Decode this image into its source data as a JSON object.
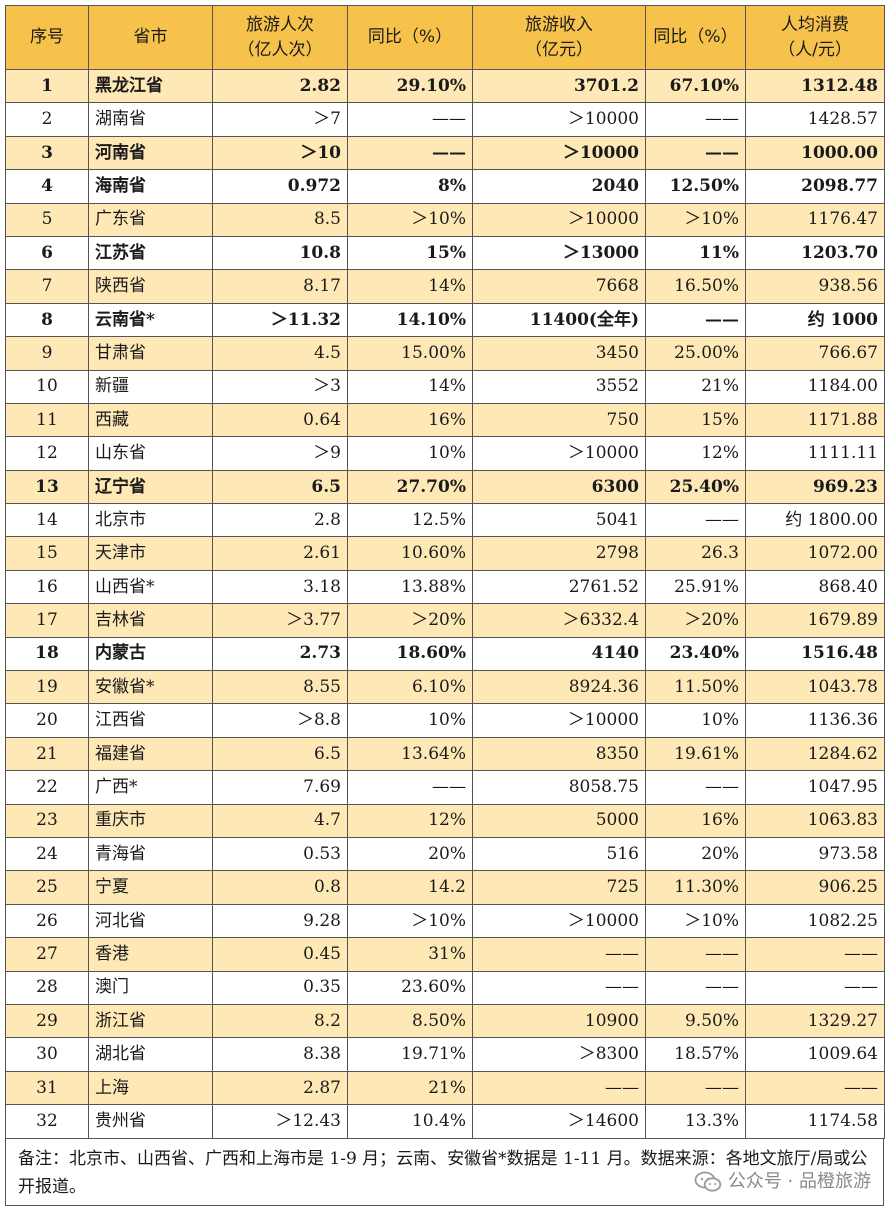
{
  "headers": [
    "序号",
    "省市",
    "旅游人次\n（亿人次）",
    "同比（%）",
    "旅游收入\n（亿元）",
    "同比（%）",
    "人均消费\n（人/元）"
  ],
  "rows": [
    [
      "1",
      "黑龙江省",
      "2.82",
      "29.10%",
      "3701.2",
      "67.10%",
      "1312.48"
    ],
    [
      "2",
      "湖南省",
      "＞7",
      "——",
      "＞10000",
      "——",
      "1428.57"
    ],
    [
      "3",
      "河南省",
      "＞10",
      "——",
      "＞10000",
      "——",
      "1000.00"
    ],
    [
      "4",
      "海南省",
      "0.972",
      "8%",
      "2040",
      "12.50%",
      "2098.77"
    ],
    [
      "5",
      "广东省",
      "8.5",
      "＞10%",
      "＞10000",
      "＞10%",
      "1176.47"
    ],
    [
      "6",
      "江苏省",
      "10.8",
      "15%",
      "＞13000",
      "11%",
      "1203.70"
    ],
    [
      "7",
      "陕西省",
      "8.17",
      "14%",
      "7668",
      "16.50%",
      "938.56"
    ],
    [
      "8",
      "云南省*",
      "＞11.32",
      "14.10%",
      "11400(全年)",
      "——",
      "约 1000"
    ],
    [
      "9",
      "甘肃省",
      "4.5",
      "15.00%",
      "3450",
      "25.00%",
      "766.67"
    ],
    [
      "10",
      "新疆",
      "＞3",
      "14%",
      "3552",
      "21%",
      "1184.00"
    ],
    [
      "11",
      "西藏",
      "0.64",
      "16%",
      "750",
      "15%",
      "1171.88"
    ],
    [
      "12",
      "山东省",
      "＞9",
      "10%",
      "＞10000",
      "12%",
      "1111.11"
    ],
    [
      "13",
      "辽宁省",
      "6.5",
      "27.70%",
      "6300",
      "25.40%",
      "969.23"
    ],
    [
      "14",
      "北京市",
      "2.8",
      "12.5%",
      "5041",
      "——",
      "约 1800.00"
    ],
    [
      "15",
      "天津市",
      "2.61",
      "10.60%",
      "2798",
      "26.3",
      "1072.00"
    ],
    [
      "16",
      "山西省*",
      "3.18",
      "13.88%",
      "2761.52",
      "25.91%",
      "868.40"
    ],
    [
      "17",
      "吉林省",
      "＞3.77",
      "＞20%",
      "＞6332.4",
      "＞20%",
      "1679.89"
    ],
    [
      "18",
      "内蒙古",
      "2.73",
      "18.60%",
      "4140",
      "23.40%",
      "1516.48"
    ],
    [
      "19",
      "安徽省*",
      "8.55",
      "6.10%",
      "8924.36",
      "11.50%",
      "1043.78"
    ],
    [
      "20",
      "江西省",
      "＞8.8",
      "10%",
      "＞10000",
      "10%",
      "1136.36"
    ],
    [
      "21",
      "福建省",
      "6.5",
      "13.64%",
      "8350",
      "19.61%",
      "1284.62"
    ],
    [
      "22",
      "广西*",
      "7.69",
      "——",
      "8058.75",
      "——",
      "1047.95"
    ],
    [
      "23",
      "重庆市",
      "4.7",
      "12%",
      "5000",
      "16%",
      "1063.83"
    ],
    [
      "24",
      "青海省",
      "0.53",
      "20%",
      "516",
      "20%",
      "973.58"
    ],
    [
      "25",
      "宁夏",
      "0.8",
      "14.2",
      "725",
      "11.30%",
      "906.25"
    ],
    [
      "26",
      "河北省",
      "9.28",
      "＞10%",
      "＞10000",
      "＞10%",
      "1082.25"
    ],
    [
      "27",
      "香港",
      "0.45",
      "31%",
      "——",
      "——",
      "——"
    ],
    [
      "28",
      "澳门",
      "0.35",
      "23.60%",
      "——",
      "——",
      "——"
    ],
    [
      "29",
      "浙江省",
      "8.2",
      "8.50%",
      "10900",
      "9.50%",
      "1329.27"
    ],
    [
      "30",
      "湖北省",
      "8.38",
      "19.71%",
      "＞8300",
      "18.57%",
      "1009.64"
    ],
    [
      "31",
      "上海",
      "2.87",
      "21%",
      "——",
      "——",
      "——"
    ],
    [
      "32",
      "贵州省",
      "＞12.43",
      "10.4%",
      "＞14600",
      "13.3%",
      "1174.58"
    ]
  ],
  "bold_rows": [
    1,
    3,
    4,
    6,
    8,
    13,
    18
  ],
  "colors": {
    "header_bg": "#f7c24b",
    "stripe_bg": "#fde8b6",
    "border": "#555555"
  },
  "note": "备注：北京市、山西省、广西和上海市是 1-9 月；云南、安徽省*数据是 1-11 月。数据来源：各地文旅厅/局或公开报道。",
  "watermark": {
    "icon": "wechat-icon",
    "text": "公众号 · 品橙旅游"
  }
}
